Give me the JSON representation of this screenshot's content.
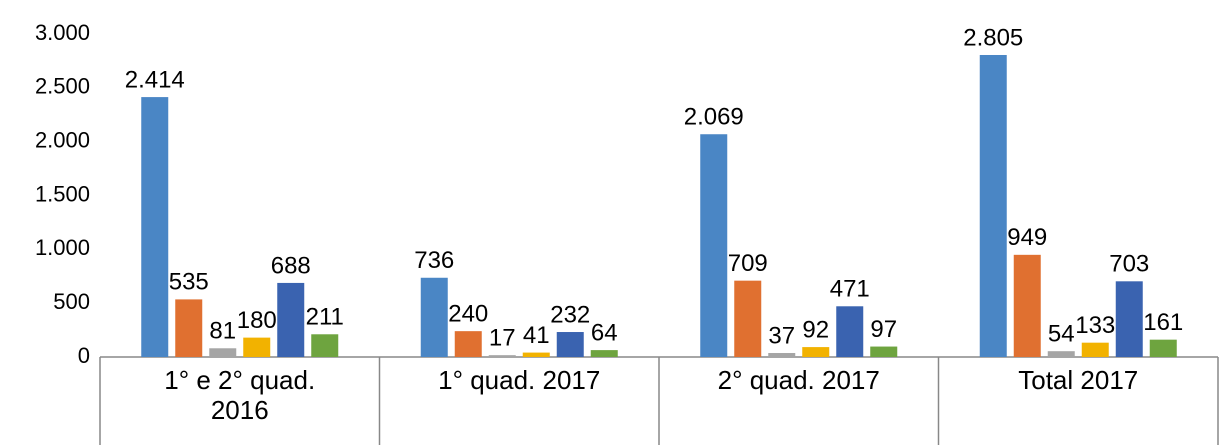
{
  "chart_data": {
    "type": "bar",
    "categories": [
      "1° e 2° quad. 2016",
      "1° quad. 2017",
      "2° quad. 2017",
      "Total 2017"
    ],
    "series": [
      {
        "color": "#4a86c5",
        "values": [
          2414,
          736,
          2069,
          2805
        ],
        "value_labels": [
          "2.414",
          "736",
          "2.069",
          "2.805"
        ]
      },
      {
        "color": "#e07030",
        "values": [
          535,
          240,
          709,
          949
        ]
      },
      {
        "color": "#a5a5a5",
        "values": [
          81,
          17,
          37,
          54
        ]
      },
      {
        "color": "#f2b200",
        "values": [
          180,
          41,
          92,
          133
        ]
      },
      {
        "color": "#3a63b0",
        "values": [
          688,
          232,
          471,
          703
        ]
      },
      {
        "color": "#6ea43f",
        "values": [
          211,
          64,
          97,
          161
        ]
      }
    ],
    "ylim": [
      0,
      3000
    ],
    "yticks": [
      0,
      500,
      {
        "value": 1000,
        "label": "1.000"
      },
      {
        "value": 1500,
        "label": "1.500"
      },
      {
        "value": 2000,
        "label": "2.000"
      },
      {
        "value": 2500,
        "label": "2.500"
      },
      {
        "value": 3000,
        "label": "3.000"
      }
    ],
    "grid": false
  }
}
